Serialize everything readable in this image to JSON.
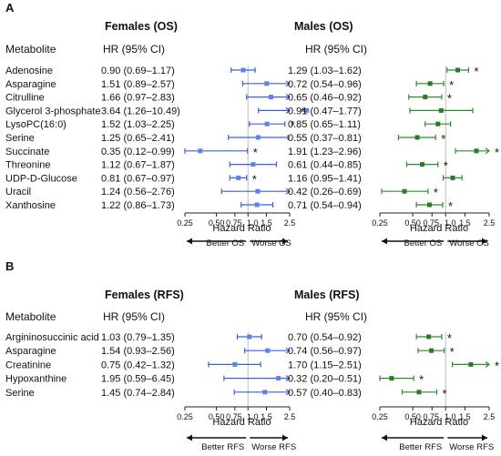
{
  "colors": {
    "females": "#3f5fd6",
    "females_point": "#5b82f0",
    "males": "#2e8b2e",
    "males_point": "#2a7a2a"
  },
  "panels": [
    {
      "letter": "A",
      "metabolite_header": "Metabolite",
      "females": {
        "title": "Females (OS)",
        "hr_header": "HR (95% CI)"
      },
      "males": {
        "title": "Males (OS)",
        "hr_header": "HR (95% CI)"
      },
      "xlabel": "Hazard Ratio",
      "better_label": "Better OS",
      "worse_label": "Worse OS",
      "rows": [
        {
          "metabolite": "Adenosine",
          "f_text": "0.90 (0.69–1.17)",
          "m_text": "1.29 (1.03–1.62)",
          "f_star": "",
          "m_star": "*"
        },
        {
          "metabolite": "Asparagine",
          "f_text": "1.51 (0.89–2.57)",
          "m_text": "0.72 (0.54–0.96)",
          "f_star": "",
          "m_star": "*"
        },
        {
          "metabolite": "Citrulline",
          "f_text": "1.66 (0.97–2.83)",
          "m_text": "0.65 (0.46–0.92)",
          "f_star": "",
          "m_star": "*"
        },
        {
          "metabolite": "Glycerol 3-phosphate",
          "f_text": "3.64 (1.26–10.49)",
          "m_text": "0.91 (0.47–1.77)",
          "f_star": "*",
          "m_star": ""
        },
        {
          "metabolite": "LysoPC(16:0)",
          "f_text": "1.52 (1.03–2.25)",
          "m_text": "0.85 (0.65–1.11)",
          "f_star": "*",
          "m_star": ""
        },
        {
          "metabolite": "Serine",
          "f_text": "1.25 (0.65–2.41)",
          "m_text": "0.55 (0.37–0.81)",
          "f_star": "",
          "m_star": "*"
        },
        {
          "metabolite": "Succinate",
          "f_text": "0.35 (0.12–0.99)",
          "m_text": "1.91 (1.23–2.96)",
          "f_star": "*",
          "m_star": "*"
        },
        {
          "metabolite": "Threonine",
          "f_text": "1.12 (0.67–1.87)",
          "m_text": "0.61 (0.44–0.85)",
          "f_star": "",
          "m_star": "*"
        },
        {
          "metabolite": "UDP-D-Glucose",
          "f_text": "0.81 (0.67–0.97)",
          "m_text": "1.16 (0.95–1.41)",
          "f_star": "*",
          "m_star": ""
        },
        {
          "metabolite": "Uracil",
          "f_text": "1.24 (0.56–2.76)",
          "m_text": "0.42 (0.26–0.69)",
          "f_star": "",
          "m_star": "*"
        },
        {
          "metabolite": "Xanthosine",
          "f_text": "1.22 (0.86–1.73)",
          "m_text": "0.71 (0.54–0.94)",
          "f_star": "",
          "m_star": "*"
        }
      ]
    },
    {
      "letter": "B",
      "metabolite_header": "Metabolite",
      "females": {
        "title": "Females (RFS)",
        "hr_header": "HR (95% CI)"
      },
      "males": {
        "title": "Males (RFS)",
        "hr_header": "HR (95% CI)"
      },
      "xlabel": "Hazard Ratio",
      "better_label": "Better RFS",
      "worse_label": "Worse RFS",
      "rows": [
        {
          "metabolite": "Argininosuccinic acid",
          "f_text": "1.03 (0.79–1.35)",
          "m_text": "0.70 (0.54–0.92)",
          "f_star": "",
          "m_star": "*"
        },
        {
          "metabolite": "Asparagine",
          "f_text": "1.54 (0.93–2.56)",
          "m_text": "0.74 (0.56–0.97)",
          "f_star": "",
          "m_star": "*"
        },
        {
          "metabolite": "Creatinine",
          "f_text": "0.75 (0.42–1.32)",
          "m_text": "1.70 (1.15–2.51)",
          "f_star": "",
          "m_star": "*"
        },
        {
          "metabolite": "Hypoxanthine",
          "f_text": "1.95 (0.59–6.45)",
          "m_text": "0.32 (0.20–0.51)",
          "f_star": "",
          "m_star": "*"
        },
        {
          "metabolite": "Serine",
          "f_text": "1.45 (0.74–2.84)",
          "m_text": "0.57 (0.40–0.83)",
          "f_star": "",
          "m_star": "*"
        }
      ]
    }
  ],
  "chart_data": [
    {
      "type": "scatter",
      "panel": "A",
      "group": "Females (OS)",
      "xlabel": "Hazard Ratio",
      "x_scale": "log",
      "xlim": [
        0.25,
        2.5
      ],
      "xticks": [
        "0.25",
        "0.50",
        "0.75",
        "1.0",
        "1.5",
        "2.5"
      ],
      "reference_line": 1.0,
      "categories": [
        "Adenosine",
        "Asparagine",
        "Citrulline",
        "Glycerol 3-phosphate",
        "LysoPC(16:0)",
        "Serine",
        "Succinate",
        "Threonine",
        "UDP-D-Glucose",
        "Uracil",
        "Xanthosine"
      ],
      "hr": [
        0.9,
        1.51,
        1.66,
        3.64,
        1.52,
        1.25,
        0.35,
        1.12,
        0.81,
        1.24,
        1.22
      ],
      "lower": [
        0.69,
        0.89,
        0.97,
        1.26,
        1.03,
        0.65,
        0.12,
        0.67,
        0.67,
        0.56,
        0.86
      ],
      "upper": [
        1.17,
        2.57,
        2.83,
        10.49,
        2.25,
        2.41,
        0.99,
        1.87,
        0.97,
        2.76,
        1.73
      ]
    },
    {
      "type": "scatter",
      "panel": "A",
      "group": "Males (OS)",
      "xlabel": "Hazard Ratio",
      "x_scale": "log",
      "xlim": [
        0.25,
        2.5
      ],
      "xticks": [
        "0.25",
        "0.50",
        "0.75",
        "1.0",
        "1.5",
        "2.5"
      ],
      "reference_line": 1.0,
      "categories": [
        "Adenosine",
        "Asparagine",
        "Citrulline",
        "Glycerol 3-phosphate",
        "LysoPC(16:0)",
        "Serine",
        "Succinate",
        "Threonine",
        "UDP-D-Glucose",
        "Uracil",
        "Xanthosine"
      ],
      "hr": [
        1.29,
        0.72,
        0.65,
        0.91,
        0.85,
        0.55,
        1.91,
        0.61,
        1.16,
        0.42,
        0.71
      ],
      "lower": [
        1.03,
        0.54,
        0.46,
        0.47,
        0.65,
        0.37,
        1.23,
        0.44,
        0.95,
        0.26,
        0.54
      ],
      "upper": [
        1.62,
        0.96,
        0.92,
        1.77,
        1.11,
        0.81,
        2.96,
        0.85,
        1.41,
        0.69,
        0.94
      ]
    },
    {
      "type": "scatter",
      "panel": "B",
      "group": "Females (RFS)",
      "xlabel": "Hazard Ratio",
      "x_scale": "log",
      "xlim": [
        0.25,
        2.5
      ],
      "xticks": [
        "0.25",
        "0.50",
        "0.75",
        "1.0",
        "1.5",
        "2.5"
      ],
      "reference_line": 1.0,
      "categories": [
        "Argininosuccinic acid",
        "Asparagine",
        "Creatinine",
        "Hypoxanthine",
        "Serine"
      ],
      "hr": [
        1.03,
        1.54,
        0.75,
        1.95,
        1.45
      ],
      "lower": [
        0.79,
        0.93,
        0.42,
        0.59,
        0.74
      ],
      "upper": [
        1.35,
        2.56,
        1.32,
        6.45,
        2.84
      ]
    },
    {
      "type": "scatter",
      "panel": "B",
      "group": "Males (RFS)",
      "xlabel": "Hazard Ratio",
      "x_scale": "log",
      "xlim": [
        0.25,
        2.5
      ],
      "xticks": [
        "0.25",
        "0.50",
        "0.75",
        "1.0",
        "1.5",
        "2.5"
      ],
      "reference_line": 1.0,
      "categories": [
        "Argininosuccinic acid",
        "Asparagine",
        "Creatinine",
        "Hypoxanthine",
        "Serine"
      ],
      "hr": [
        0.7,
        0.74,
        1.7,
        0.32,
        0.57
      ],
      "lower": [
        0.54,
        0.56,
        1.15,
        0.2,
        0.4
      ],
      "upper": [
        0.92,
        0.97,
        2.51,
        0.51,
        0.83
      ]
    }
  ]
}
